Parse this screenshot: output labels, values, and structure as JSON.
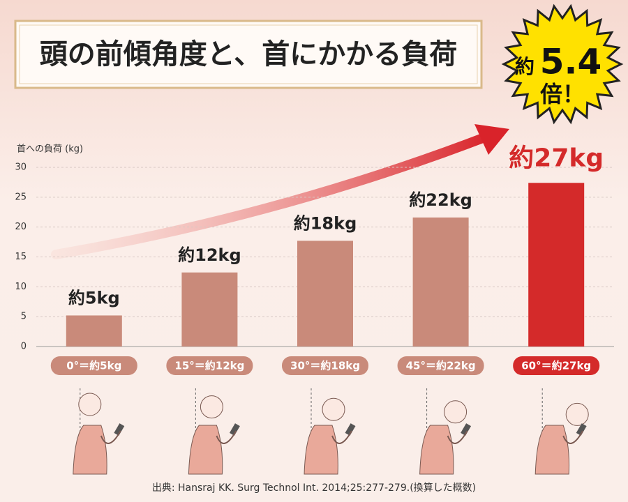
{
  "chart_data": {
    "type": "bar",
    "title": "頭の前傾角度と、首にかかる負荷",
    "badge": {
      "prefix": "約",
      "value": 5.4,
      "suffix": "倍！"
    },
    "y_label": "首への負荷 (kg)",
    "categories": [
      "0°＝約5kg",
      "15°＝約12kg",
      "30°＝約18kg",
      "45°＝約22kg",
      "60°＝約27kg"
    ],
    "values": [
      5.2,
      12.4,
      17.7,
      21.6,
      27.4
    ],
    "value_labels": [
      "約5kg",
      "約12kg",
      "約18kg",
      "約22kg",
      "約27kg"
    ],
    "colors": [
      "#c98a7a",
      "#c98a7a",
      "#c98a7a",
      "#c98a7a",
      "#d42a2a"
    ],
    "ylim": [
      0,
      30
    ],
    "yticks": [
      0,
      5,
      10,
      15,
      20,
      25,
      30
    ],
    "grid": true,
    "source": "出典: Hansraj KK. Surg Technol Int. 2014;25:277-279.(換算した概数)"
  }
}
